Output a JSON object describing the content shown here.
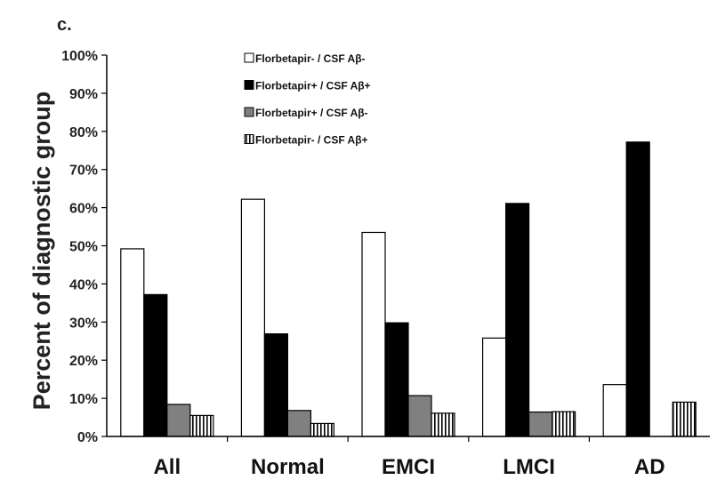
{
  "chart_data": {
    "panel_label": "c.",
    "type": "bar",
    "ylabel": "Percent of diagnostic group",
    "ylim": [
      0,
      100
    ],
    "y_tick_labels": [
      "0%",
      "10%",
      "20%",
      "30%",
      "40%",
      "50%",
      "60%",
      "70%",
      "80%",
      "90%",
      "100%"
    ],
    "categories": [
      "All",
      "Normal",
      "EMCI",
      "LMCI",
      "AD"
    ],
    "legend_position": "top-center",
    "grid": false,
    "series": [
      {
        "name": "Florbetapir- / CSF Aβ-",
        "fill": "#ffffff",
        "pattern": "solid",
        "values": [
          49.2,
          62.2,
          53.5,
          25.8,
          13.6
        ]
      },
      {
        "name": "Florbetapir+ / CSF Aβ+",
        "fill": "#000000",
        "pattern": "solid",
        "values": [
          37.2,
          26.9,
          29.8,
          61.1,
          77.2
        ]
      },
      {
        "name": "Florbetapir+ / CSF Aβ-",
        "fill": "#808080",
        "pattern": "solid",
        "values": [
          8.4,
          6.8,
          10.7,
          6.4,
          0
        ]
      },
      {
        "name": "Florbetapir- / CSF Aβ+",
        "fill": "#ffffff",
        "pattern": "vertical-stripes",
        "values": [
          5.5,
          3.4,
          6.1,
          6.5,
          9.0
        ]
      }
    ]
  }
}
